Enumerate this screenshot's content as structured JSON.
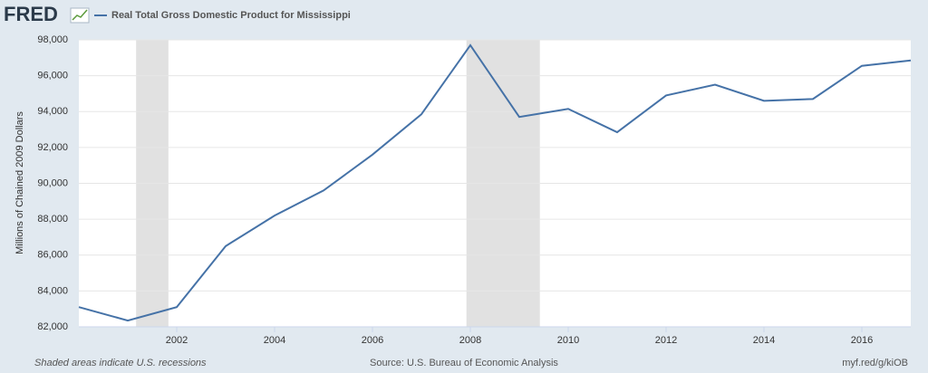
{
  "logo": "FRED",
  "chart_data": {
    "type": "line",
    "ylabel": "Millions of Chained 2009 Dollars",
    "x": [
      2000,
      2001,
      2002,
      2003,
      2004,
      2005,
      2006,
      2007,
      2008,
      2009,
      2010,
      2011,
      2012,
      2013,
      2014,
      2015,
      2016,
      2017
    ],
    "series": [
      {
        "name": "Real Total Gross Domestic Product for Mississippi",
        "color": "#4572a7",
        "values": [
          83100,
          82350,
          83100,
          86500,
          88200,
          89600,
          91600,
          93850,
          97700,
          93700,
          94150,
          92850,
          94900,
          95500,
          94600,
          94700,
          96550,
          96850
        ]
      }
    ],
    "xlim": [
      2000,
      2017
    ],
    "xticks": [
      2002,
      2004,
      2006,
      2008,
      2010,
      2012,
      2014,
      2016
    ],
    "ylim": [
      82000,
      98000
    ],
    "yticks": [
      {
        "value": 82000,
        "label": "82,000"
      },
      {
        "value": 84000,
        "label": "84,000"
      },
      {
        "value": 86000,
        "label": "86,000"
      },
      {
        "value": 88000,
        "label": "88,000"
      },
      {
        "value": 90000,
        "label": "90,000"
      },
      {
        "value": 92000,
        "label": "92,000"
      },
      {
        "value": 94000,
        "label": "94,000"
      },
      {
        "value": 96000,
        "label": "96,000"
      },
      {
        "value": 98000,
        "label": "98,000"
      }
    ],
    "grid": true,
    "recessions": [
      [
        2001.17,
        2001.83
      ],
      [
        2007.92,
        2009.42
      ]
    ],
    "recession_color": "#e1e1e1",
    "footnote": "Shaded areas indicate U.S. recessions",
    "source": "Source: U.S. Bureau of Economic Analysis",
    "link": "myf.red/g/kiOB"
  }
}
